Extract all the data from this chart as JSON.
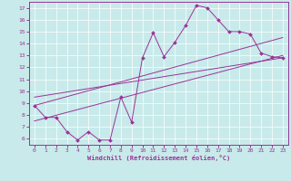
{
  "xlabel": "Windchill (Refroidissement éolien,°C)",
  "bg_color": "#c8eaea",
  "line_color": "#993399",
  "x_data": [
    0,
    1,
    2,
    3,
    4,
    5,
    6,
    7,
    8,
    9,
    10,
    11,
    12,
    13,
    14,
    15,
    16,
    17,
    18,
    19,
    20,
    21,
    22,
    23
  ],
  "y_zigzag": [
    8.8,
    7.8,
    7.8,
    6.6,
    5.9,
    6.6,
    5.9,
    5.9,
    9.5,
    7.4,
    12.8,
    14.9,
    12.9,
    14.1,
    15.5,
    17.2,
    17.0,
    16.0,
    15.0,
    15.0,
    14.8,
    13.2,
    12.9,
    12.8
  ],
  "ylim": [
    5.5,
    17.5
  ],
  "xlim": [
    -0.5,
    23.5
  ],
  "yticks": [
    6,
    7,
    8,
    9,
    10,
    11,
    12,
    13,
    14,
    15,
    16,
    17
  ],
  "xticks": [
    0,
    1,
    2,
    3,
    4,
    5,
    6,
    7,
    8,
    9,
    10,
    11,
    12,
    13,
    14,
    15,
    16,
    17,
    18,
    19,
    20,
    21,
    22,
    23
  ],
  "line1_x": [
    0,
    23
  ],
  "line1_y": [
    7.5,
    13.0
  ],
  "line2_x": [
    0,
    23
  ],
  "line2_y": [
    8.5,
    14.8
  ],
  "line3_x": [
    0,
    23
  ],
  "line3_y": [
    9.8,
    12.5
  ]
}
